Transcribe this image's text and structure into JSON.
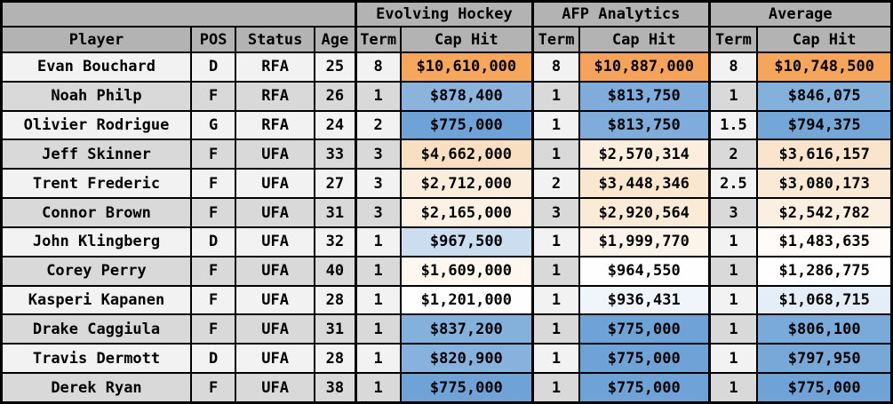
{
  "table": {
    "title": "player-contract-projections",
    "group_headers": [
      "Evolving Hockey",
      "AFP Analytics",
      "Average"
    ],
    "column_headers": [
      "Player",
      "POS",
      "Status",
      "Age",
      "Term",
      "Cap Hit",
      "Term",
      "Cap Hit",
      "Term",
      "Cap Hit"
    ],
    "row_cells": [
      {
        "key": "player",
        "name": "player-cell"
      },
      {
        "key": "pos",
        "name": "pos-cell"
      },
      {
        "key": "status",
        "name": "status-cell"
      },
      {
        "key": "age",
        "name": "age-cell"
      },
      {
        "key": "eh_term",
        "name": "evolving-hockey-term-cell",
        "class": "sep-left"
      },
      {
        "key": "eh_cap",
        "name": "evolving-hockey-caphit-cell",
        "color_key": "eh_color"
      },
      {
        "key": "afp_term",
        "name": "afp-analytics-term-cell",
        "class": "sep-left"
      },
      {
        "key": "afp_cap",
        "name": "afp-analytics-caphit-cell",
        "color_key": "afp_color"
      },
      {
        "key": "avg_term",
        "name": "average-term-cell",
        "class": "sep-left"
      },
      {
        "key": "avg_cap",
        "name": "average-caphit-cell",
        "color_key": "avg_color"
      }
    ],
    "rows": [
      {
        "player": "Evan Bouchard",
        "pos": "D",
        "status": "RFA",
        "age": "25",
        "eh_term": "8",
        "eh_cap": "$10,610,000",
        "eh_color": "#f6a75c",
        "afp_term": "8",
        "afp_cap": "$10,887,000",
        "afp_color": "#f5a35a",
        "avg_term": "8",
        "avg_cap": "$10,748,500",
        "avg_color": "#f6a55c"
      },
      {
        "player": "Noah Philp",
        "pos": "F",
        "status": "RFA",
        "age": "26",
        "eh_term": "1",
        "eh_cap": "$878,400",
        "eh_color": "#8ab4de",
        "afp_term": "1",
        "afp_cap": "$813,750",
        "afp_color": "#7facda",
        "avg_term": "1",
        "avg_cap": "$846,075",
        "avg_color": "#84b0dc"
      },
      {
        "player": "Olivier Rodrigue",
        "pos": "G",
        "status": "RFA",
        "age": "24",
        "eh_term": "2",
        "eh_cap": "$775,000",
        "eh_color": "#6fa3d7",
        "afp_term": "1",
        "afp_cap": "$813,750",
        "afp_color": "#7facda",
        "avg_term": "1.5",
        "avg_cap": "$794,375",
        "avg_color": "#74a6d8"
      },
      {
        "player": "Jeff Skinner",
        "pos": "F",
        "status": "UFA",
        "age": "33",
        "eh_term": "3",
        "eh_cap": "$4,662,000",
        "eh_color": "#f9dfc1",
        "afp_term": "1",
        "afp_cap": "$2,570,314",
        "afp_color": "#fbeedf",
        "avg_term": "2",
        "avg_cap": "$3,616,157",
        "avg_color": "#fae5cc"
      },
      {
        "player": "Trent Frederic",
        "pos": "F",
        "status": "UFA",
        "age": "27",
        "eh_term": "3",
        "eh_cap": "$2,712,000",
        "eh_color": "#fbeddb",
        "afp_term": "2",
        "afp_cap": "$3,448,346",
        "afp_color": "#fae7d0",
        "avg_term": "2.5",
        "avg_cap": "$3,080,173",
        "avg_color": "#faead5"
      },
      {
        "player": "Connor Brown",
        "pos": "F",
        "status": "UFA",
        "age": "31",
        "eh_term": "3",
        "eh_cap": "$2,165,000",
        "eh_color": "#fcf1e4",
        "afp_term": "3",
        "afp_cap": "$2,920,564",
        "afp_color": "#faebd7",
        "avg_term": "3",
        "avg_cap": "$2,542,782",
        "avg_color": "#fbefe1"
      },
      {
        "player": "John Klingberg",
        "pos": "D",
        "status": "UFA",
        "age": "32",
        "eh_term": "1",
        "eh_cap": "$967,500",
        "eh_color": "#cbdef0",
        "afp_term": "1",
        "afp_cap": "$1,999,770",
        "afp_color": "#fcf4ea",
        "avg_term": "1",
        "avg_cap": "$1,483,635",
        "avg_color": "#fefbf8"
      },
      {
        "player": "Corey Perry",
        "pos": "F",
        "status": "UFA",
        "age": "40",
        "eh_term": "1",
        "eh_cap": "$1,609,000",
        "eh_color": "#fdf7f0",
        "afp_term": "1",
        "afp_cap": "$964,550",
        "afp_color": "#fefefe",
        "avg_term": "1",
        "avg_cap": "$1,286,775",
        "avg_color": "#fefefe"
      },
      {
        "player": "Kasperi Kapanen",
        "pos": "F",
        "status": "UFA",
        "age": "28",
        "eh_term": "1",
        "eh_cap": "$1,201,000",
        "eh_color": "#fefefe",
        "afp_term": "1",
        "afp_cap": "$936,431",
        "afp_color": "#eff5fb",
        "avg_term": "1",
        "avg_cap": "$1,068,715",
        "avg_color": "#e4eef8"
      },
      {
        "player": "Drake Caggiula",
        "pos": "F",
        "status": "UFA",
        "age": "31",
        "eh_term": "1",
        "eh_cap": "$837,200",
        "eh_color": "#84b0dc",
        "afp_term": "1",
        "afp_cap": "$775,000",
        "afp_color": "#6fa3d7",
        "avg_term": "1",
        "avg_cap": "$806,100",
        "avg_color": "#7aaad9"
      },
      {
        "player": "Travis Dermott",
        "pos": "D",
        "status": "UFA",
        "age": "28",
        "eh_term": "1",
        "eh_cap": "$820,900",
        "eh_color": "#87b2dd",
        "afp_term": "1",
        "afp_cap": "$775,000",
        "afp_color": "#6fa3d7",
        "avg_term": "1",
        "avg_cap": "$797,950",
        "avg_color": "#77a8d8"
      },
      {
        "player": "Derek Ryan",
        "pos": "F",
        "status": "UFA",
        "age": "38",
        "eh_term": "1",
        "eh_cap": "$775,000",
        "eh_color": "#6fa3d7",
        "afp_term": "1",
        "afp_cap": "$775,000",
        "afp_color": "#6fa3d7",
        "avg_term": "1",
        "avg_cap": "$775,000",
        "avg_color": "#6fa3d7"
      }
    ],
    "colors": {
      "header_bg": "#b3b3b3",
      "row_light": "#f2f2f2",
      "row_dark": "#d9d9d9",
      "border": "#000000",
      "scale_low_blue": "#6fa3d7",
      "scale_mid_white": "#fefefe",
      "scale_high_orange": "#f6a75c"
    }
  }
}
